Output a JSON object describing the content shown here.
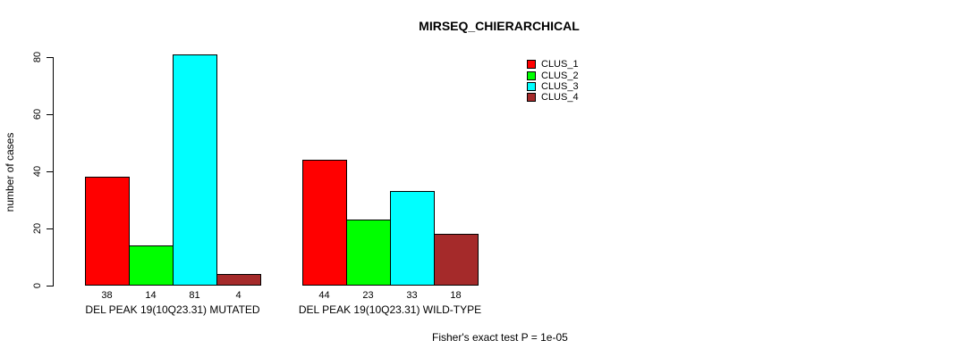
{
  "title": "MIRSEQ_CHIERARCHICAL",
  "ylabel": "number of cases",
  "footer": "Fisher's exact test P = 1e-05",
  "chart_data": {
    "type": "bar",
    "title": "MIRSEQ_CHIERARCHICAL",
    "xlabel": "",
    "ylabel": "number of cases",
    "ylim": [
      0,
      80
    ],
    "yticks": [
      0,
      20,
      40,
      60,
      80
    ],
    "grid": false,
    "legend_position": "top-right",
    "series": [
      {
        "name": "CLUS_1",
        "color": "#FF0000",
        "values": [
          38,
          44
        ]
      },
      {
        "name": "CLUS_2",
        "color": "#00FF00",
        "values": [
          14,
          23
        ]
      },
      {
        "name": "CLUS_3",
        "color": "#00FFFF",
        "values": [
          81,
          33
        ]
      },
      {
        "name": "CLUS_4",
        "color": "#A52A2A",
        "values": [
          4,
          18
        ]
      }
    ],
    "groups": [
      {
        "label": "DEL PEAK 19(10Q23.31) MUTATED",
        "values": [
          38,
          14,
          81,
          4
        ]
      },
      {
        "label": "DEL PEAK 19(10Q23.31) WILD-TYPE",
        "values": [
          44,
          23,
          33,
          18
        ]
      }
    ],
    "bar_value_labels": [
      [
        "38",
        "14",
        "81",
        "4"
      ],
      [
        "44",
        "23",
        "33",
        "18"
      ]
    ],
    "annotation": "Fisher's exact test P = 1e-05"
  },
  "legend": {
    "entries": [
      {
        "label": "CLUS_1",
        "color": "#FF0000"
      },
      {
        "label": "CLUS_2",
        "color": "#00FF00"
      },
      {
        "label": "CLUS_3",
        "color": "#00FFFF"
      },
      {
        "label": "CLUS_4",
        "color": "#A52A2A"
      }
    ]
  }
}
